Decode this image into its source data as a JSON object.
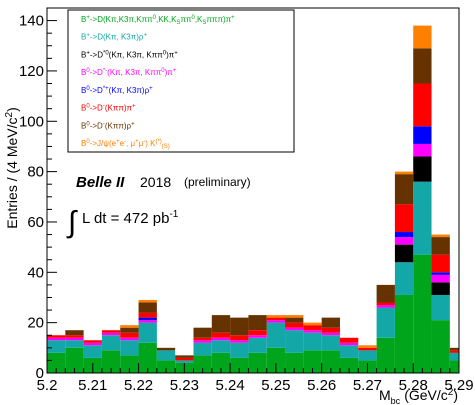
{
  "chart_data": {
    "type": "bar",
    "stacked": true,
    "xlabel": "M_bc (GeV/c^2)",
    "xlabel_main": "M",
    "xlabel_sub": "bc",
    "xlabel_unit": "(GeV/c",
    "xlabel_unit_sup": "2",
    "xlabel_unit_end": ")",
    "ylabel": "Entries / (4 MeV/c^2)",
    "ylabel_main": "Entries / (4 MeV/c",
    "ylabel_sup": "2",
    "ylabel_end": ")",
    "xlim": [
      5.2,
      5.29
    ],
    "ylim": [
      0,
      145
    ],
    "x_ticks": [
      5.2,
      5.21,
      5.22,
      5.23,
      5.24,
      5.25,
      5.26,
      5.27,
      5.28,
      5.29
    ],
    "x_tick_labels": [
      "5.2",
      "5.21",
      "5.22",
      "5.23",
      "5.24",
      "5.25",
      "5.26",
      "5.27",
      "5.28",
      "5.29"
    ],
    "y_ticks": [
      0,
      20,
      40,
      60,
      80,
      100,
      120,
      140
    ],
    "y_tick_labels": [
      "0",
      "20",
      "40",
      "60",
      "80",
      "100",
      "120",
      "140"
    ],
    "bin_edges": [
      5.2,
      5.204,
      5.208,
      5.212,
      5.216,
      5.22,
      5.224,
      5.228,
      5.232,
      5.236,
      5.24,
      5.244,
      5.248,
      5.252,
      5.256,
      5.26,
      5.264,
      5.268,
      5.272,
      5.276,
      5.28,
      5.284,
      5.288,
      5.29
    ],
    "series": [
      {
        "name": "B+->D(Kπ,K3π,Kππ0,KK,KSππ0,KSπππ)π+",
        "color": "#00a51b",
        "values": [
          8,
          10,
          6,
          9,
          7,
          12,
          5,
          4,
          7,
          8,
          6,
          8,
          10,
          8,
          9,
          9,
          6,
          5,
          14,
          31,
          47,
          21,
          5
        ]
      },
      {
        "name": "B+->D(Kπ, K3π)ρ+",
        "color": "#14a7a8",
        "values": [
          5,
          3,
          5,
          6,
          6,
          8,
          4,
          1,
          5,
          5,
          6,
          6,
          10,
          9,
          7,
          6,
          5,
          4,
          12,
          13,
          29,
          10,
          3
        ]
      },
      {
        "name": "B+->D*0(Kπ, K3π, Kππ0)π+",
        "color": "#000000",
        "values": [
          0,
          0,
          0,
          0,
          0,
          0,
          0,
          0,
          0,
          0,
          0,
          0,
          0,
          0,
          0,
          0,
          0,
          0,
          0,
          7,
          10,
          5,
          0
        ]
      },
      {
        "name": "B0->D*-(Kπ, K3π, Kππ0)π+",
        "color": "#ff00ff",
        "values": [
          1,
          1,
          1,
          1,
          1,
          1,
          0,
          0,
          1,
          1,
          1,
          1,
          1,
          1,
          1,
          1,
          1,
          0,
          1,
          3,
          5,
          3,
          0
        ]
      },
      {
        "name": "B0->D*+(Kπ, K3π)ρ+",
        "color": "#0000ff",
        "values": [
          0,
          0,
          0,
          0,
          0,
          1,
          0,
          0,
          0,
          0,
          0,
          0,
          0,
          0,
          0,
          0,
          0,
          0,
          0,
          2,
          7,
          1,
          0
        ]
      },
      {
        "name": "B0->D-(Kππ)π+",
        "color": "#ff0000",
        "values": [
          1,
          1,
          1,
          1,
          2,
          2,
          0,
          1,
          1,
          2,
          2,
          2,
          1,
          2,
          2,
          2,
          2,
          1,
          1,
          11,
          17,
          7,
          1
        ]
      },
      {
        "name": "B0->D-(Kππ)ρ+",
        "color": "#663300",
        "values": [
          0,
          2,
          0,
          0,
          2,
          4,
          1,
          1,
          4,
          7,
          7,
          6,
          0,
          2,
          0,
          4,
          0,
          0,
          7,
          12,
          14,
          7,
          1
        ]
      },
      {
        "name": "B0->J/ψ(e+e-, μ+μ-) K(*)(S)",
        "color": "#ff7f00",
        "values": [
          0,
          0,
          0,
          0,
          1,
          1,
          0,
          0,
          0,
          0,
          0,
          0,
          1,
          1,
          1,
          0,
          0,
          1,
          0,
          1,
          9,
          1,
          0
        ]
      }
    ]
  },
  "legend": {
    "entries": [
      {
        "parts": [
          [
            "B",
            ""
          ],
          [
            "+",
            "sup"
          ],
          [
            "->D(Kπ,K3π,Kππ",
            ""
          ],
          [
            "0",
            "sup"
          ],
          [
            ",KK,K",
            ""
          ],
          [
            "S",
            "sub"
          ],
          [
            "ππ",
            ""
          ],
          [
            "0",
            "sup"
          ],
          [
            ",K",
            ""
          ],
          [
            "S",
            "sub"
          ],
          [
            "πππ)π",
            ""
          ],
          [
            "+",
            "sup"
          ]
        ],
        "color": "#00a51b"
      },
      {
        "parts": [
          [
            "B",
            ""
          ],
          [
            "+",
            "sup"
          ],
          [
            "->D(Kπ, K3π)ρ",
            ""
          ],
          [
            "+",
            "sup"
          ]
        ],
        "color": "#14a7a8"
      },
      {
        "parts": [
          [
            "B",
            ""
          ],
          [
            "+",
            "sup"
          ],
          [
            "->D",
            ""
          ],
          [
            "*0",
            "sup"
          ],
          [
            "(Kπ, K3π, Kππ",
            ""
          ],
          [
            "0",
            "sup"
          ],
          [
            ")π",
            ""
          ],
          [
            "+",
            "sup"
          ]
        ],
        "color": "#000000"
      },
      {
        "parts": [
          [
            "B",
            ""
          ],
          [
            "0",
            "sup"
          ],
          [
            "->D",
            ""
          ],
          [
            "*-",
            "sup"
          ],
          [
            "(Kπ, K3π, Kππ",
            ""
          ],
          [
            "0",
            "sup"
          ],
          [
            ")π",
            ""
          ],
          [
            "+",
            "sup"
          ]
        ],
        "color": "#ff00ff"
      },
      {
        "parts": [
          [
            "B",
            ""
          ],
          [
            "0",
            "sup"
          ],
          [
            "->D",
            ""
          ],
          [
            "*+",
            "sup"
          ],
          [
            "(Kπ, K3π)ρ",
            ""
          ],
          [
            "+",
            "sup"
          ]
        ],
        "color": "#0000ff"
      },
      {
        "parts": [
          [
            "B",
            ""
          ],
          [
            "0",
            "sup"
          ],
          [
            "->D",
            ""
          ],
          [
            "-",
            "sup"
          ],
          [
            "(Kππ)π",
            ""
          ],
          [
            "+",
            "sup"
          ]
        ],
        "color": "#ff0000"
      },
      {
        "parts": [
          [
            "B",
            ""
          ],
          [
            "0",
            "sup"
          ],
          [
            "->D",
            ""
          ],
          [
            "-",
            "sup"
          ],
          [
            "(Kππ)ρ",
            ""
          ],
          [
            "+",
            "sup"
          ]
        ],
        "color": "#663300"
      },
      {
        "parts": [
          [
            "B",
            ""
          ],
          [
            "0",
            "sup"
          ],
          [
            "->J/ψ(e",
            ""
          ],
          [
            "+",
            "sup"
          ],
          [
            "e",
            ""
          ],
          [
            "-",
            "sup"
          ],
          [
            ", μ",
            ""
          ],
          [
            "+",
            "sup"
          ],
          [
            "μ",
            ""
          ],
          [
            "-",
            "sup"
          ],
          [
            ") K",
            ""
          ],
          [
            "(*)",
            "sup"
          ],
          [
            "(S)",
            "sub"
          ]
        ],
        "color": "#ff7f00"
      }
    ]
  },
  "annotation": {
    "experiment": "Belle II",
    "year": "2018",
    "note": "(preliminary)",
    "integral": "∫",
    "lumi": "L dt = 472 pb",
    "lumi_sup": "-1"
  }
}
